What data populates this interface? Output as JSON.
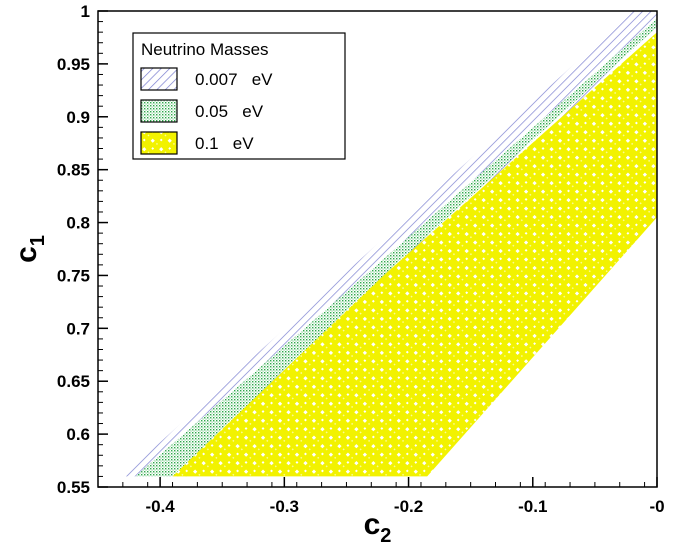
{
  "chart_data": {
    "type": "area",
    "title": "",
    "xlabel": "c",
    "xlabel_subscript": "2",
    "ylabel": "c",
    "ylabel_subscript": "1",
    "xlim": [
      -0.45,
      0.0
    ],
    "ylim": [
      0.55,
      1.0
    ],
    "x_ticks": [
      -0.4,
      -0.3,
      -0.2,
      -0.1,
      0.0
    ],
    "x_tick_labels": [
      "-0.4",
      "-0.3",
      "-0.2",
      "-0.1",
      "-0"
    ],
    "y_ticks": [
      0.55,
      0.6,
      0.65,
      0.7,
      0.75,
      0.8,
      0.85,
      0.9,
      0.95,
      1.0
    ],
    "y_tick_labels": [
      "0.55",
      "0.6",
      "0.65",
      "0.7",
      "0.75",
      "0.8",
      "0.85",
      "0.9",
      "0.95",
      "1"
    ],
    "grid": false,
    "legend": {
      "title": "Neutrino Masses",
      "placement": "top-left",
      "entries": [
        {
          "label": "0.007   eV",
          "color": "#7b7fd0",
          "pattern": "diagonal-hatch"
        },
        {
          "label": "0.05   eV",
          "color": "#2ea84a",
          "pattern": "dots"
        },
        {
          "label": "0.1   eV",
          "color": "#f2f200",
          "pattern": "checker"
        }
      ]
    },
    "series": [
      {
        "name": "0.007   eV",
        "color": "#7b7fd0",
        "polygon": [
          [
            -0.43,
            0.56
          ],
          [
            -0.377,
            0.56
          ],
          [
            -0.2,
            0.755
          ],
          [
            0.0,
            0.985
          ],
          [
            0.0,
            1.0
          ],
          [
            -0.02,
            1.0
          ]
        ]
      },
      {
        "name": "0.05   eV",
        "color": "#2ea84a",
        "polygon": [
          [
            -0.42,
            0.56
          ],
          [
            -0.39,
            0.56
          ],
          [
            -0.22,
            0.75
          ],
          [
            0.0,
            0.985
          ],
          [
            0.0,
            0.993
          ],
          [
            -0.24,
            0.745
          ]
        ]
      },
      {
        "name": "0.1   eV",
        "color": "#f2f200",
        "polygon": [
          [
            -0.405,
            0.56
          ],
          [
            -0.185,
            0.56
          ],
          [
            0.0,
            0.805
          ],
          [
            0.0,
            0.98
          ],
          [
            -0.22,
            0.75
          ],
          [
            -0.39,
            0.56
          ]
        ]
      }
    ]
  }
}
